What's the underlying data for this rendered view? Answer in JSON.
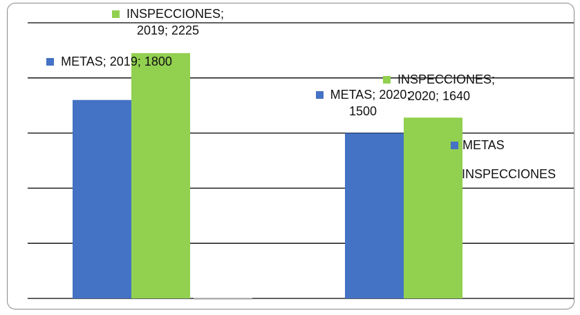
{
  "chart_data": {
    "type": "bar",
    "series": [
      {
        "name": "METAS",
        "color": "#4472c4",
        "values": [
          1800,
          1500
        ],
        "value_labels": [
          "METAS; 2019; 1800",
          "METAS; 2020; 1500"
        ]
      },
      {
        "name": "INSPECCIONES",
        "color": "#92d050",
        "values": [
          2225,
          1640
        ],
        "value_labels": [
          "INSPECCIONES; 2019; 2225",
          "INSPECCIONES; 2020; 1640"
        ]
      }
    ],
    "ylim": [
      0,
      2500
    ],
    "yticks": [
      0,
      500,
      1000,
      1500,
      2000,
      2500
    ],
    "grid": true
  }
}
